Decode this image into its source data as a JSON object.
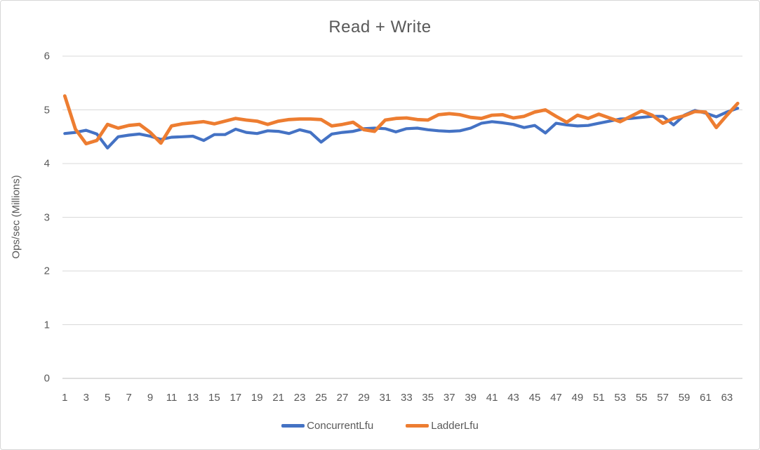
{
  "chart_data": {
    "type": "line",
    "title": "Read + Write",
    "xlabel": "",
    "ylabel": "Ops/sec (Millions)",
    "ylim": [
      0,
      6
    ],
    "y_ticks": [
      0,
      1,
      2,
      3,
      4,
      5,
      6
    ],
    "x_tick_labels": [
      1,
      3,
      5,
      7,
      9,
      11,
      13,
      15,
      17,
      19,
      21,
      23,
      25,
      27,
      29,
      31,
      33,
      35,
      37,
      39,
      41,
      43,
      45,
      47,
      49,
      51,
      53,
      55,
      57,
      59,
      61,
      63
    ],
    "x": [
      1,
      2,
      3,
      4,
      5,
      6,
      7,
      8,
      9,
      10,
      11,
      12,
      13,
      14,
      15,
      16,
      17,
      18,
      19,
      20,
      21,
      22,
      23,
      24,
      25,
      26,
      27,
      28,
      29,
      30,
      31,
      32,
      33,
      34,
      35,
      36,
      37,
      38,
      39,
      40,
      41,
      42,
      43,
      44,
      45,
      46,
      47,
      48,
      49,
      50,
      51,
      52,
      53,
      54,
      55,
      56,
      57,
      58,
      59,
      60,
      61,
      62,
      63,
      64
    ],
    "grid": "horizontal",
    "legend_position": "bottom",
    "colors": {
      "grid": "#d9d9d9",
      "axis": "#bfbfbf",
      "text": "#595959"
    },
    "series": [
      {
        "name": "ConcurrentLfu",
        "color": "#4472C4",
        "values": [
          4.56,
          4.58,
          4.62,
          4.55,
          4.29,
          4.5,
          4.53,
          4.55,
          4.51,
          4.45,
          4.49,
          4.5,
          4.51,
          4.43,
          4.54,
          4.54,
          4.64,
          4.58,
          4.56,
          4.61,
          4.6,
          4.56,
          4.63,
          4.58,
          4.4,
          4.55,
          4.58,
          4.6,
          4.65,
          4.66,
          4.65,
          4.59,
          4.65,
          4.66,
          4.63,
          4.61,
          4.6,
          4.61,
          4.66,
          4.75,
          4.78,
          4.76,
          4.73,
          4.67,
          4.71,
          4.57,
          4.75,
          4.72,
          4.7,
          4.71,
          4.75,
          4.79,
          4.83,
          4.84,
          4.86,
          4.88,
          4.88,
          4.72,
          4.9,
          4.99,
          4.94,
          4.87,
          4.96,
          5.03
        ]
      },
      {
        "name": "LadderLfu",
        "color": "#ED7D31",
        "values": [
          5.26,
          4.64,
          4.37,
          4.43,
          4.73,
          4.66,
          4.71,
          4.73,
          4.58,
          4.38,
          4.7,
          4.74,
          4.76,
          4.78,
          4.74,
          4.79,
          4.84,
          4.81,
          4.79,
          4.73,
          4.79,
          4.82,
          4.83,
          4.83,
          4.82,
          4.7,
          4.73,
          4.77,
          4.63,
          4.6,
          4.81,
          4.84,
          4.85,
          4.82,
          4.81,
          4.91,
          4.93,
          4.91,
          4.86,
          4.84,
          4.9,
          4.91,
          4.85,
          4.88,
          4.96,
          5.0,
          4.88,
          4.77,
          4.9,
          4.84,
          4.92,
          4.85,
          4.78,
          4.88,
          4.98,
          4.9,
          4.75,
          4.84,
          4.89,
          4.97,
          4.96,
          4.67,
          4.9,
          5.12
        ]
      }
    ]
  }
}
